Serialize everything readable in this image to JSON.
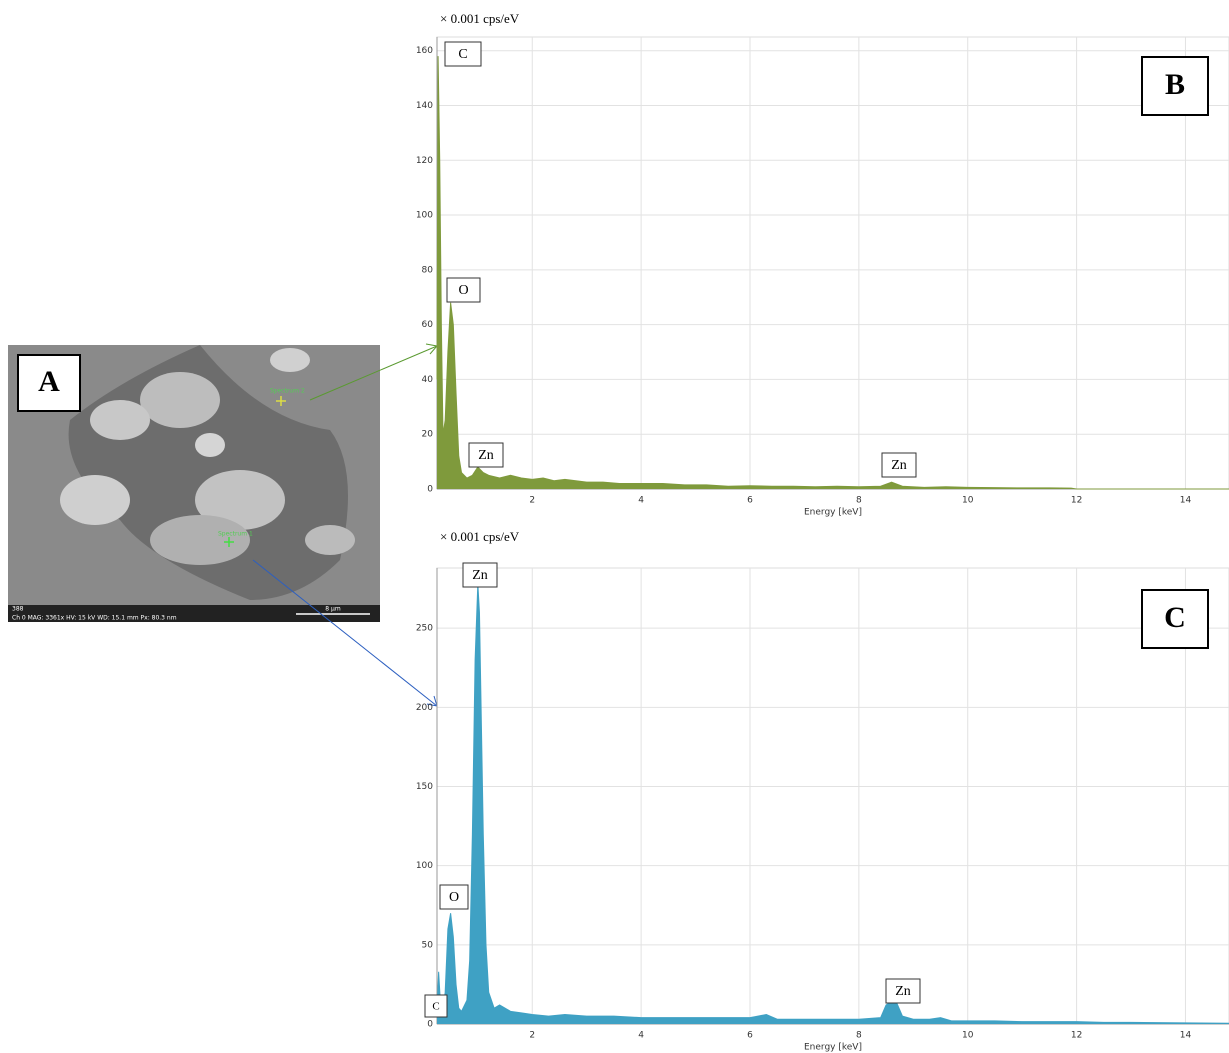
{
  "panels": {
    "a": "A"
  },
  "sem_image": {
    "spectrum_2": "Spectrum 2",
    "spectrum_1": "Spectrum 1",
    "frame_no": "388",
    "info": "Ch 0   MAG: 3361x   HV: 15 kV   WD: 15.1 mm   Px: 80.3 nm",
    "scale_bar": "8 µm"
  },
  "chart_data": [
    {
      "type": "area",
      "panel": "B",
      "y_unit": "× 0.001 cps/eV",
      "x_label": "Energy [keV]",
      "color": "#7f9a3c",
      "annotations": [
        "C",
        "O",
        "Zn",
        "Zn"
      ],
      "xlim": [
        0.25,
        14.8
      ],
      "ylim": [
        0,
        165
      ],
      "xticks": [
        2,
        4,
        6,
        8,
        10,
        12,
        14
      ],
      "yticks": [
        0,
        20,
        40,
        60,
        80,
        100,
        120,
        140,
        160
      ],
      "grid": true,
      "x": [
        0.25,
        0.27,
        0.3,
        0.33,
        0.36,
        0.4,
        0.45,
        0.5,
        0.55,
        0.6,
        0.65,
        0.7,
        0.8,
        0.9,
        1.0,
        1.05,
        1.1,
        1.2,
        1.4,
        1.6,
        1.8,
        2.0,
        2.2,
        2.4,
        2.6,
        2.8,
        3.0,
        3.3,
        3.6,
        4.0,
        4.4,
        4.8,
        5.2,
        5.6,
        6.0,
        6.4,
        6.8,
        7.2,
        7.6,
        8.0,
        8.4,
        8.6,
        8.8,
        9.2,
        9.6,
        10.0,
        10.5,
        11.0,
        11.5,
        11.9,
        12.0,
        14.8
      ],
      "values": [
        40,
        158,
        120,
        60,
        20,
        25,
        50,
        68,
        60,
        35,
        12,
        6,
        4,
        5,
        8,
        7,
        6,
        5,
        4,
        5,
        4,
        3.5,
        4,
        3,
        3.5,
        3,
        2.5,
        2.5,
        2,
        2,
        2,
        1.5,
        1.5,
        1,
        1.2,
        1,
        1,
        0.8,
        1,
        0.8,
        1,
        2.5,
        1,
        0.6,
        0.8,
        0.6,
        0.5,
        0.4,
        0.4,
        0.3,
        0,
        0
      ]
    },
    {
      "type": "area",
      "panel": "C",
      "y_unit": "× 0.001 cps/eV",
      "x_label": "Energy [keV]",
      "color": "#3fa1c4",
      "annotations": [
        "Zn",
        "O",
        "C",
        "Zn"
      ],
      "xlim": [
        0.25,
        14.8
      ],
      "ylim": [
        0,
        288
      ],
      "xticks": [
        2,
        4,
        6,
        8,
        10,
        12,
        14
      ],
      "yticks": [
        0,
        50,
        100,
        150,
        200,
        250
      ],
      "grid": true,
      "x": [
        0.25,
        0.28,
        0.31,
        0.35,
        0.4,
        0.45,
        0.5,
        0.55,
        0.6,
        0.65,
        0.7,
        0.8,
        0.85,
        0.9,
        0.95,
        1.0,
        1.03,
        1.06,
        1.1,
        1.15,
        1.2,
        1.3,
        1.4,
        1.6,
        1.8,
        2.0,
        2.3,
        2.6,
        3.0,
        3.5,
        4.0,
        4.5,
        5.0,
        5.5,
        6.0,
        6.3,
        6.5,
        7.0,
        7.5,
        8.0,
        8.4,
        8.5,
        8.6,
        8.7,
        8.8,
        9.0,
        9.3,
        9.5,
        9.7,
        10.0,
        10.5,
        11.0,
        11.5,
        12.0,
        12.5,
        13.0,
        14.8
      ],
      "values": [
        10,
        33,
        15,
        5,
        20,
        60,
        70,
        55,
        25,
        10,
        8,
        15,
        40,
        120,
        230,
        278,
        260,
        200,
        120,
        50,
        20,
        10,
        12,
        8,
        7,
        6,
        5,
        6,
        5,
        5,
        4,
        4,
        4,
        4,
        4,
        6,
        3,
        3,
        3,
        3,
        4,
        12,
        14,
        13,
        5,
        3,
        3,
        4,
        2,
        2,
        2,
        1.5,
        1.5,
        1.5,
        1,
        1,
        0.5
      ]
    }
  ]
}
